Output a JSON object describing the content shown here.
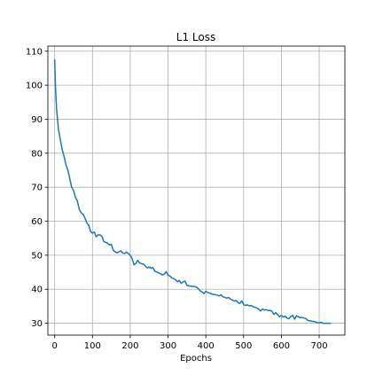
{
  "chart_data": {
    "type": "line",
    "title": "L1 Loss",
    "xlabel": "Epochs",
    "ylabel": "",
    "xlim": [
      -18,
      768
    ],
    "ylim": [
      26.5,
      111.5
    ],
    "xticks": [
      0,
      100,
      200,
      300,
      400,
      500,
      600,
      700
    ],
    "yticks": [
      30,
      40,
      50,
      60,
      70,
      80,
      90,
      100,
      110
    ],
    "grid": true,
    "legend": "none",
    "series": [
      {
        "color": "#1f77b4",
        "x": [
          0,
          2,
          5,
          10,
          15,
          20,
          25,
          30,
          35,
          40,
          45,
          50,
          55,
          60,
          65,
          70,
          75,
          80,
          85,
          90,
          95,
          100,
          105,
          110,
          115,
          120,
          125,
          130,
          135,
          140,
          145,
          150,
          155,
          160,
          165,
          170,
          175,
          180,
          185,
          190,
          195,
          200,
          205,
          210,
          215,
          220,
          225,
          230,
          235,
          240,
          245,
          250,
          255,
          260,
          265,
          270,
          275,
          280,
          285,
          290,
          295,
          300,
          305,
          310,
          315,
          320,
          325,
          330,
          335,
          340,
          345,
          350,
          355,
          360,
          365,
          370,
          375,
          380,
          385,
          390,
          395,
          400,
          405,
          410,
          415,
          420,
          425,
          430,
          435,
          440,
          445,
          450,
          455,
          460,
          465,
          470,
          475,
          480,
          485,
          490,
          495,
          500,
          505,
          510,
          515,
          520,
          525,
          530,
          535,
          540,
          545,
          550,
          555,
          560,
          565,
          570,
          575,
          580,
          585,
          590,
          595,
          600,
          605,
          610,
          615,
          620,
          625,
          630,
          635,
          640,
          645,
          650,
          655,
          660,
          665,
          670,
          675,
          680,
          685,
          690,
          695,
          700,
          705,
          710,
          715,
          720,
          725,
          730
        ],
        "y": [
          107.5,
          100,
          93,
          87,
          84,
          81,
          79,
          76.5,
          75,
          72.5,
          70,
          69,
          67,
          66,
          63.5,
          62.5,
          62,
          61,
          59.5,
          58.8,
          57,
          56.5,
          56.8,
          55.4,
          56,
          56,
          55.5,
          54,
          53.8,
          53.5,
          53,
          53.2,
          51.5,
          51,
          50.7,
          51,
          51.3,
          50.7,
          50.5,
          50.9,
          50.5,
          50,
          49,
          47.2,
          47.6,
          48.5,
          47.7,
          47.5,
          47.4,
          46.8,
          46.3,
          46.5,
          46.2,
          46.4,
          45.3,
          45.1,
          44.8,
          44.6,
          44.2,
          44.4,
          45.2,
          44.1,
          43.9,
          43.3,
          43.1,
          42.8,
          42.2,
          42.6,
          41.7,
          42.2,
          42.4,
          41.1,
          41,
          40.9,
          40.8,
          40.8,
          40.6,
          40.2,
          39.5,
          39.2,
          38.7,
          39.4,
          39,
          38.9,
          38.6,
          38.5,
          38.4,
          38.3,
          38,
          38.4,
          37.8,
          37.6,
          37.4,
          37.6,
          37.1,
          36.8,
          36.5,
          36.7,
          36.1,
          35.8,
          36.6,
          35.5,
          35.2,
          35.4,
          35.1,
          35.2,
          34.9,
          34.7,
          34.5,
          34.1,
          33.6,
          34.2,
          33.9,
          34,
          33.7,
          33.8,
          33.5,
          32.6,
          33.1,
          32.5,
          31.9,
          32.3,
          31.8,
          32.1,
          31.5,
          31.3,
          32,
          32.3,
          31.2,
          32.2,
          31.9,
          31.6,
          31.7,
          31.5,
          31.4,
          30.8,
          30.7,
          30.6,
          30.5,
          30.4,
          30.2,
          30.1,
          30.3,
          30,
          30,
          30,
          30,
          30
        ]
      }
    ]
  }
}
